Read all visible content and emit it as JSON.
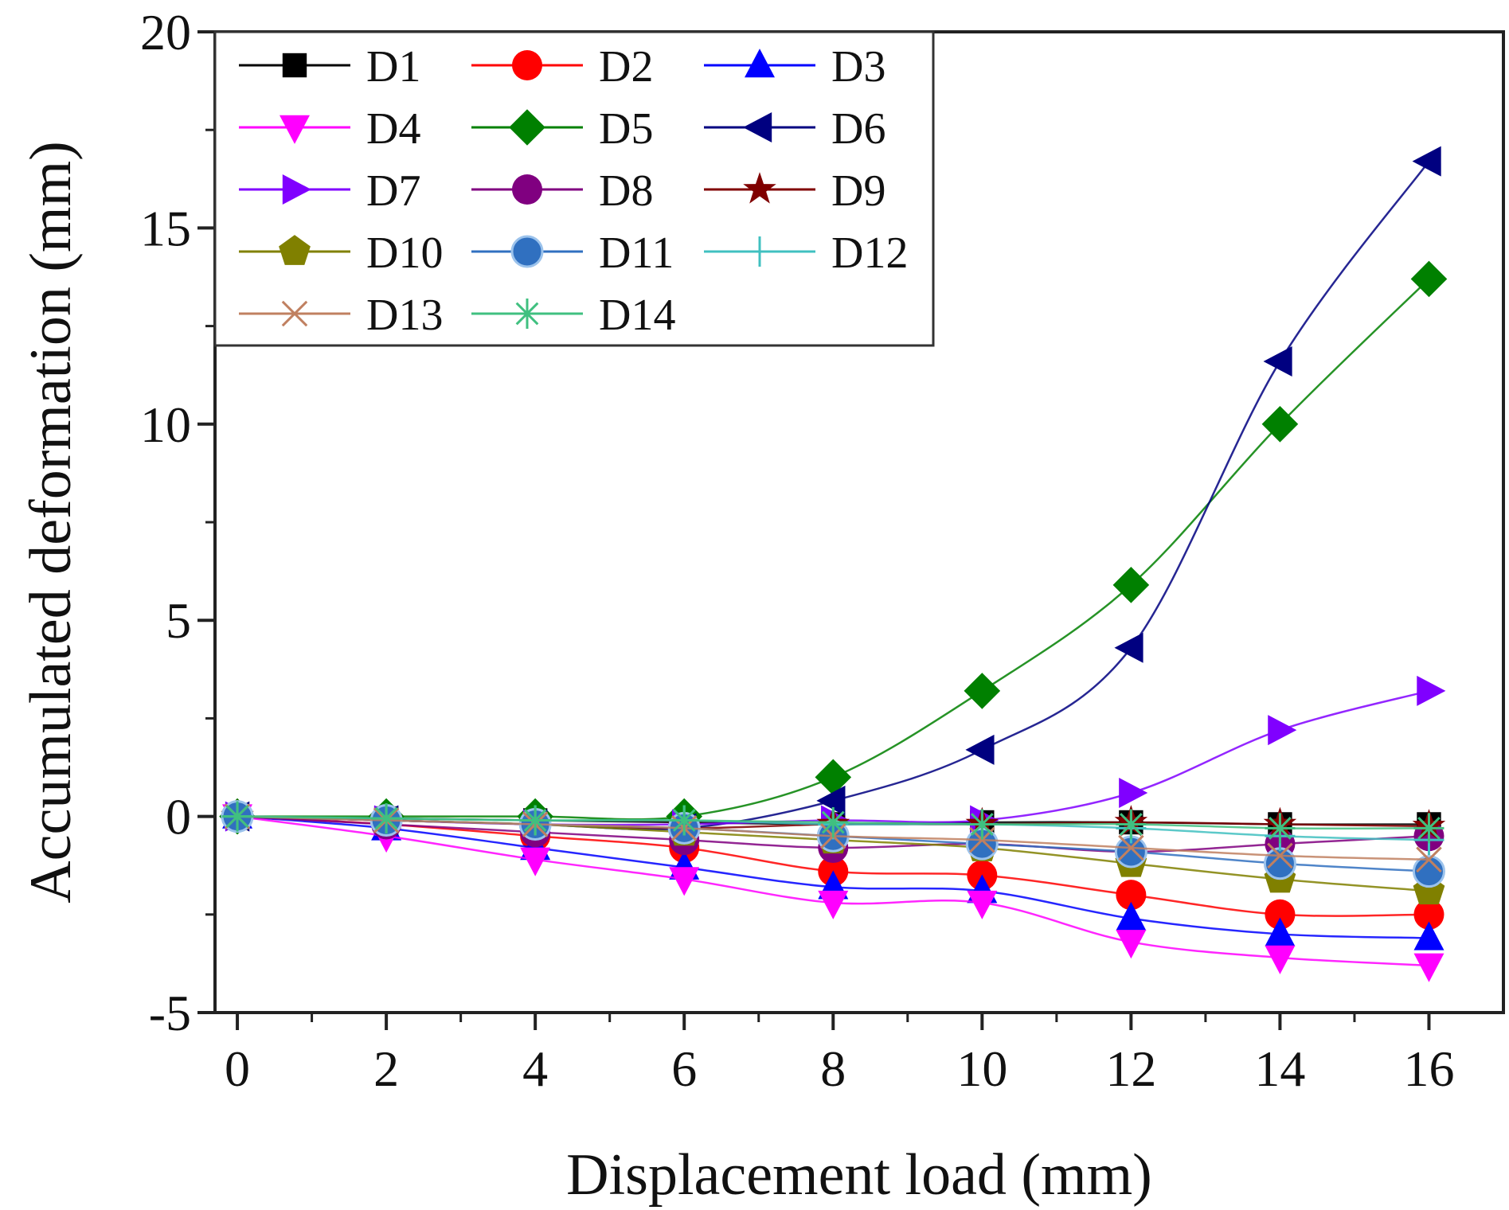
{
  "chart_data": {
    "type": "line",
    "xlabel": "Displacement load (mm)",
    "ylabel": "Accumulated deformation (mm)",
    "xlim": [
      -0.3,
      17.0
    ],
    "ylim": [
      -5,
      20
    ],
    "x_ticks": [
      0,
      2,
      4,
      6,
      8,
      10,
      12,
      14,
      16
    ],
    "y_ticks": [
      -5,
      0,
      5,
      10,
      15,
      20
    ],
    "x_tick_labels": [
      "0",
      "2",
      "4",
      "6",
      "8",
      "10",
      "12",
      "14",
      "16"
    ],
    "y_tick_labels": [
      "-5",
      "0",
      "5",
      "10",
      "15",
      "20"
    ],
    "x": [
      0,
      2,
      4,
      6,
      8,
      10,
      12,
      14,
      16
    ],
    "legend_position": "top-left",
    "series": [
      {
        "name": "D1",
        "color": "#000000",
        "marker": "square",
        "values": [
          0,
          -0.05,
          -0.1,
          -0.15,
          -0.2,
          -0.15,
          -0.15,
          -0.2,
          -0.2
        ]
      },
      {
        "name": "D2",
        "color": "#ff0000",
        "marker": "circle",
        "values": [
          0,
          -0.2,
          -0.5,
          -0.8,
          -1.4,
          -1.5,
          -2.0,
          -2.5,
          -2.5
        ]
      },
      {
        "name": "D3",
        "color": "#0000ff",
        "marker": "triangle-up",
        "values": [
          0,
          -0.3,
          -0.8,
          -1.3,
          -1.8,
          -1.9,
          -2.6,
          -3.0,
          -3.1
        ]
      },
      {
        "name": "D4",
        "color": "#ff00ff",
        "marker": "triangle-down",
        "values": [
          0,
          -0.5,
          -1.1,
          -1.6,
          -2.2,
          -2.2,
          -3.2,
          -3.6,
          -3.8
        ]
      },
      {
        "name": "D5",
        "color": "#008000",
        "marker": "diamond",
        "values": [
          0,
          0,
          0,
          0,
          1.0,
          3.2,
          5.9,
          10.0,
          13.7
        ]
      },
      {
        "name": "D6",
        "color": "#000080",
        "marker": "triangle-left",
        "values": [
          0,
          -0.1,
          -0.2,
          -0.3,
          0.4,
          1.7,
          4.3,
          11.6,
          16.7
        ]
      },
      {
        "name": "D7",
        "color": "#8000ff",
        "marker": "triangle-right",
        "values": [
          0,
          -0.1,
          -0.2,
          -0.2,
          -0.1,
          -0.1,
          0.6,
          2.2,
          3.2
        ]
      },
      {
        "name": "D8",
        "color": "#800080",
        "marker": "circle",
        "values": [
          0,
          -0.2,
          -0.4,
          -0.6,
          -0.8,
          -0.7,
          -0.9,
          -0.7,
          -0.5
        ]
      },
      {
        "name": "D9",
        "color": "#800000",
        "marker": "star",
        "values": [
          0,
          -0.1,
          -0.2,
          -0.3,
          -0.2,
          -0.2,
          -0.15,
          -0.2,
          -0.25
        ]
      },
      {
        "name": "D10",
        "color": "#808000",
        "marker": "pentagon",
        "values": [
          0,
          -0.1,
          -0.2,
          -0.4,
          -0.6,
          -0.8,
          -1.2,
          -1.6,
          -1.9
        ]
      },
      {
        "name": "D11",
        "color": "#3070c0",
        "marker": "sphere",
        "values": [
          0,
          -0.1,
          -0.2,
          -0.3,
          -0.5,
          -0.7,
          -0.9,
          -1.2,
          -1.4
        ]
      },
      {
        "name": "D12",
        "color": "#40c0c0",
        "marker": "plus",
        "values": [
          0,
          -0.05,
          -0.1,
          -0.1,
          -0.2,
          -0.2,
          -0.3,
          -0.5,
          -0.6
        ]
      },
      {
        "name": "D13",
        "color": "#c08060",
        "marker": "x",
        "values": [
          0,
          -0.1,
          -0.2,
          -0.3,
          -0.5,
          -0.6,
          -0.8,
          -1.0,
          -1.1
        ]
      },
      {
        "name": "D14",
        "color": "#40c080",
        "marker": "asterisk",
        "values": [
          0,
          -0.05,
          -0.1,
          -0.1,
          -0.15,
          -0.2,
          -0.2,
          -0.3,
          -0.3
        ]
      }
    ]
  }
}
